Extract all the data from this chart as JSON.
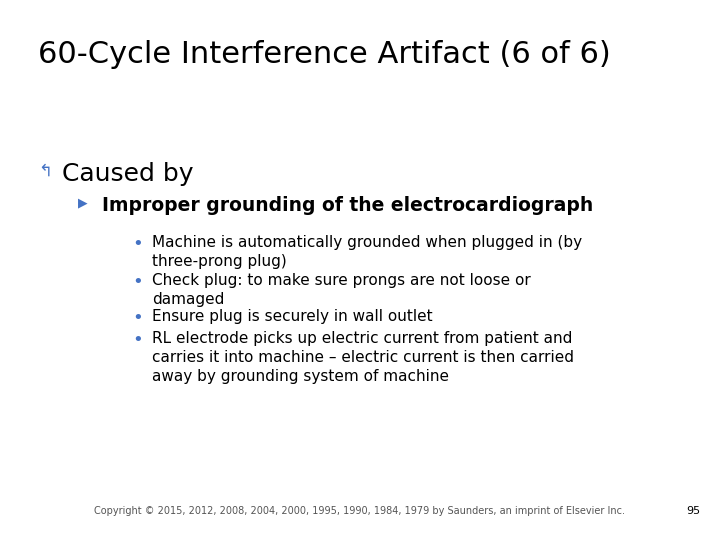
{
  "title": "60-Cycle Interference Artifact (6 of 6)",
  "title_fontsize": 22,
  "title_color": "#000000",
  "background_color": "#ffffff",
  "caused_by_label": "Caused by",
  "caused_by_fontsize": 18,
  "caused_by_color": "#000000",
  "caused_by_icon_color": "#4472c4",
  "sub_heading": "Improper grounding of the electrocardiograph",
  "sub_heading_fontsize": 13.5,
  "sub_heading_color": "#000000",
  "arrow_color": "#4472c4",
  "bullets": [
    "Machine is automatically grounded when plugged in (by\nthree-prong plug)",
    "Check plug: to make sure prongs are not loose or\ndamaged",
    "Ensure plug is securely in wall outlet",
    "RL electrode picks up electric current from patient and\ncarries it into machine – electric current is then carried\naway by grounding system of machine"
  ],
  "bullet_fontsize": 11,
  "bullet_color": "#000000",
  "bullet_dot_color": "#4472c4",
  "footer": "Copyright © 2015, 2012, 2008, 2004, 2000, 1995, 1990, 1984, 1979 by Saunders, an imprint of Elsevier Inc.",
  "footer_fontsize": 7,
  "footer_color": "#555555",
  "page_number": "95",
  "page_number_fontsize": 8,
  "page_number_color": "#000000"
}
